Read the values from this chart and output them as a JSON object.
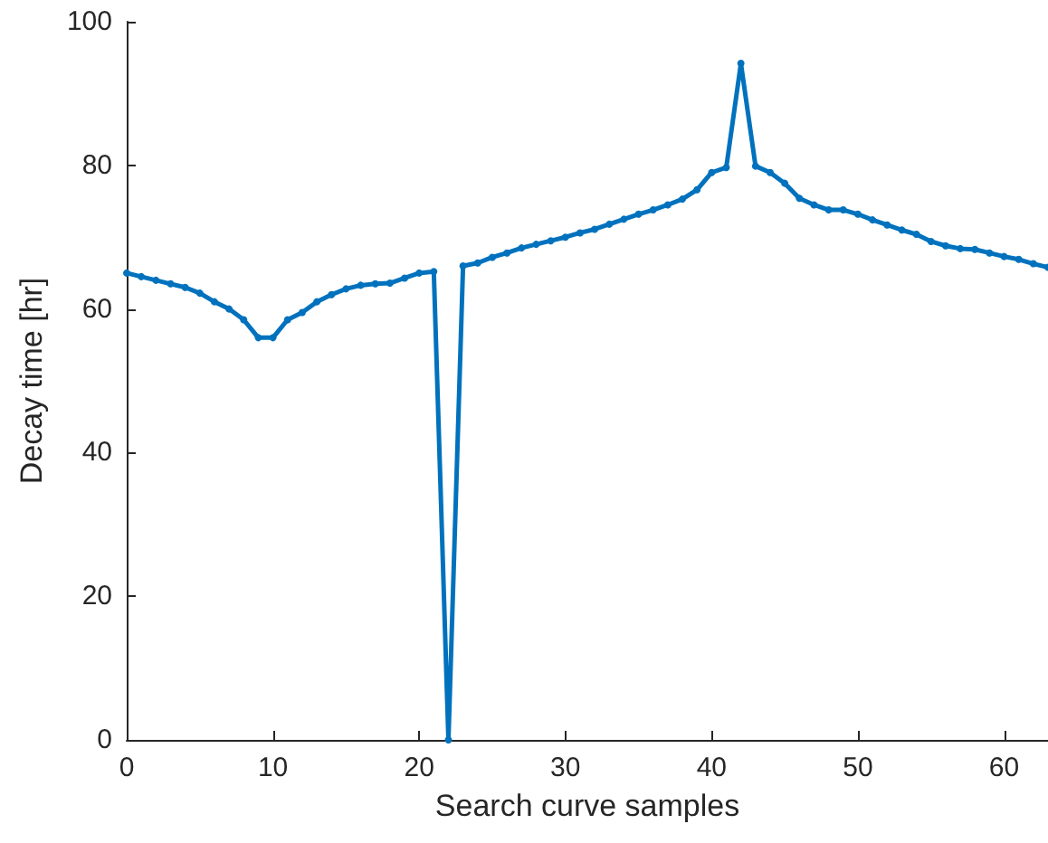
{
  "chart_data": {
    "type": "line",
    "xlabel": "Search curve samples",
    "ylabel": "Decay time [hr]",
    "x": [
      0,
      1,
      2,
      3,
      4,
      5,
      6,
      7,
      8,
      9,
      10,
      11,
      12,
      13,
      14,
      15,
      16,
      17,
      18,
      19,
      20,
      21,
      22,
      23,
      24,
      25,
      26,
      27,
      28,
      29,
      30,
      31,
      32,
      33,
      34,
      35,
      36,
      37,
      38,
      39,
      40,
      41,
      42,
      43,
      44,
      45,
      46,
      47,
      48,
      49,
      50,
      51,
      52,
      53,
      54,
      55,
      56,
      57,
      58,
      59,
      60,
      61,
      62,
      63
    ],
    "series": [
      {
        "color": "#0072bd",
        "values": [
          65,
          64.5,
          64,
          63.5,
          63,
          62.2,
          61,
          60,
          58.5,
          56,
          56,
          58.5,
          59.5,
          61,
          62,
          62.8,
          63.3,
          63.5,
          63.6,
          64.3,
          65,
          65.2,
          0,
          66,
          66.4,
          67.2,
          67.8,
          68.5,
          69,
          69.5,
          70,
          70.6,
          71.1,
          71.8,
          72.5,
          73.2,
          73.8,
          74.5,
          75.3,
          76.6,
          79,
          79.7,
          94.2,
          79.9,
          79,
          77.5,
          75.4,
          74.5,
          73.8,
          73.8,
          73.2,
          72.4,
          71.7,
          71,
          70.4,
          69.4,
          68.8,
          68.4,
          68.3,
          67.8,
          67.3,
          66.9,
          66.3,
          65.8
        ]
      }
    ],
    "xlim": [
      0,
      63
    ],
    "xticks": [
      0,
      10,
      20,
      30,
      40,
      50,
      60
    ],
    "ylim": [
      0,
      100
    ],
    "yticks": [
      0,
      20,
      40,
      60,
      80,
      100
    ],
    "grid": false,
    "marker": "circle",
    "line_style": "solid"
  }
}
